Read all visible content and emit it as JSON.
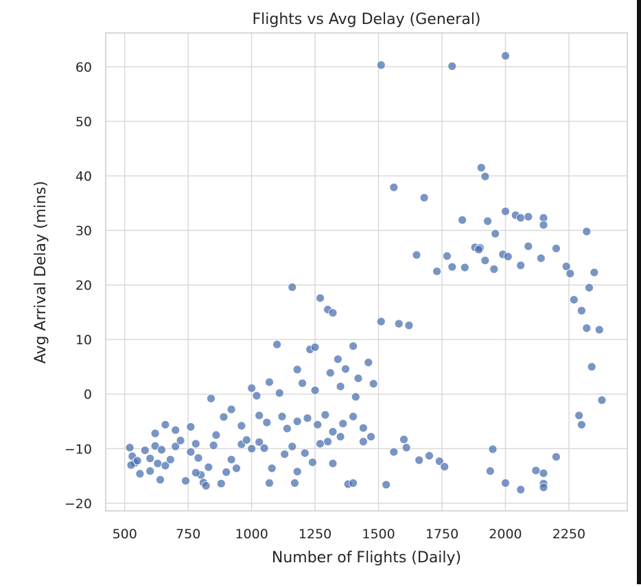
{
  "chart_data": {
    "type": "scatter",
    "title": "Flights vs Avg Delay (General)",
    "xlabel": "Number of Flights (Daily)",
    "ylabel": "Avg Arrival Delay (mins)",
    "xlim": [
      425,
      2480
    ],
    "ylim": [
      -21.4,
      66.2
    ],
    "xticks": [
      500,
      750,
      1000,
      1250,
      1500,
      1750,
      2000,
      2250
    ],
    "xtick_labels": [
      "500",
      "750",
      "1000",
      "1250",
      "1500",
      "1750",
      "2000",
      "2250"
    ],
    "yticks": [
      -20,
      -10,
      0,
      10,
      20,
      30,
      40,
      50,
      60
    ],
    "ytick_labels": [
      "−20",
      "−10",
      "0",
      "10",
      "20",
      "30",
      "40",
      "50",
      "60"
    ],
    "grid": true,
    "marker_color": "#4c72b0",
    "grid_color": "#d9d9d9",
    "spine_color": "#cccccc",
    "points": [
      [
        1510,
        60.3
      ],
      [
        1790,
        60.1
      ],
      [
        2000,
        62.0
      ],
      [
        1905,
        41.5
      ],
      [
        1920,
        39.9
      ],
      [
        1560,
        37.9
      ],
      [
        1680,
        36.0
      ],
      [
        2000,
        33.5
      ],
      [
        2040,
        32.8
      ],
      [
        2060,
        32.3
      ],
      [
        2090,
        32.5
      ],
      [
        2150,
        32.3
      ],
      [
        2150,
        31.0
      ],
      [
        1830,
        31.9
      ],
      [
        1930,
        31.7
      ],
      [
        2320,
        29.8
      ],
      [
        1960,
        29.4
      ],
      [
        1880,
        26.9
      ],
      [
        1900,
        26.8
      ],
      [
        1895,
        26.5
      ],
      [
        2090,
        27.1
      ],
      [
        2200,
        26.7
      ],
      [
        1650,
        25.5
      ],
      [
        1770,
        25.3
      ],
      [
        1920,
        24.5
      ],
      [
        1990,
        25.6
      ],
      [
        2010,
        25.2
      ],
      [
        2140,
        24.9
      ],
      [
        1730,
        22.5
      ],
      [
        1790,
        23.3
      ],
      [
        1840,
        23.2
      ],
      [
        1955,
        22.9
      ],
      [
        2060,
        23.6
      ],
      [
        2240,
        23.4
      ],
      [
        2255,
        22.1
      ],
      [
        1160,
        19.6
      ],
      [
        1270,
        17.6
      ],
      [
        1300,
        15.5
      ],
      [
        1320,
        14.9
      ],
      [
        1510,
        13.3
      ],
      [
        1580,
        12.9
      ],
      [
        1620,
        12.6
      ],
      [
        1100,
        9.1
      ],
      [
        1230,
        8.2
      ],
      [
        1250,
        8.6
      ],
      [
        1400,
        8.8
      ],
      [
        1340,
        6.4
      ],
      [
        1180,
        4.5
      ],
      [
        1310,
        3.9
      ],
      [
        1370,
        4.6
      ],
      [
        1420,
        2.9
      ],
      [
        1460,
        5.8
      ],
      [
        1480,
        1.9
      ],
      [
        1200,
        2.0
      ],
      [
        1070,
        2.2
      ],
      [
        1000,
        1.1
      ],
      [
        1020,
        -0.3
      ],
      [
        1110,
        0.2
      ],
      [
        1250,
        0.7
      ],
      [
        1350,
        1.4
      ],
      [
        1410,
        -0.5
      ],
      [
        840,
        -0.8
      ],
      [
        920,
        -2.8
      ],
      [
        890,
        -4.2
      ],
      [
        960,
        -5.8
      ],
      [
        1030,
        -3.9
      ],
      [
        1060,
        -5.2
      ],
      [
        1120,
        -4.1
      ],
      [
        1140,
        -6.3
      ],
      [
        1180,
        -5.0
      ],
      [
        1220,
        -4.4
      ],
      [
        1260,
        -5.6
      ],
      [
        1290,
        -3.8
      ],
      [
        1320,
        -6.9
      ],
      [
        1360,
        -5.4
      ],
      [
        1400,
        -4.1
      ],
      [
        1440,
        -6.2
      ],
      [
        1470,
        -7.8
      ],
      [
        520,
        -9.8
      ],
      [
        530,
        -11.4
      ],
      [
        540,
        -12.6
      ],
      [
        525,
        -13.0
      ],
      [
        550,
        -12.2
      ],
      [
        580,
        -10.3
      ],
      [
        600,
        -11.8
      ],
      [
        620,
        -9.5
      ],
      [
        630,
        -12.7
      ],
      [
        645,
        -10.2
      ],
      [
        660,
        -13.1
      ],
      [
        600,
        -14.1
      ],
      [
        560,
        -14.6
      ],
      [
        640,
        -15.7
      ],
      [
        680,
        -12.0
      ],
      [
        700,
        -9.6
      ],
      [
        620,
        -7.2
      ],
      [
        660,
        -5.6
      ],
      [
        700,
        -6.6
      ],
      [
        720,
        -8.5
      ],
      [
        760,
        -6.0
      ],
      [
        760,
        -10.6
      ],
      [
        780,
        -9.1
      ],
      [
        790,
        -11.7
      ],
      [
        800,
        -14.8
      ],
      [
        810,
        -16.2
      ],
      [
        820,
        -16.8
      ],
      [
        780,
        -14.4
      ],
      [
        830,
        -13.4
      ],
      [
        850,
        -9.4
      ],
      [
        860,
        -7.5
      ],
      [
        880,
        -16.4
      ],
      [
        900,
        -14.3
      ],
      [
        920,
        -12.0
      ],
      [
        940,
        -13.6
      ],
      [
        740,
        -15.9
      ],
      [
        960,
        -9.2
      ],
      [
        980,
        -8.4
      ],
      [
        1000,
        -10.0
      ],
      [
        1030,
        -8.8
      ],
      [
        1050,
        -9.9
      ],
      [
        1080,
        -13.6
      ],
      [
        1070,
        -16.3
      ],
      [
        1130,
        -11.0
      ],
      [
        1160,
        -9.6
      ],
      [
        1170,
        -16.3
      ],
      [
        1180,
        -14.2
      ],
      [
        1210,
        -10.8
      ],
      [
        1240,
        -12.5
      ],
      [
        1270,
        -9.1
      ],
      [
        1300,
        -8.7
      ],
      [
        1320,
        -12.7
      ],
      [
        1350,
        -7.8
      ],
      [
        1380,
        -16.5
      ],
      [
        1400,
        -16.3
      ],
      [
        1440,
        -8.7
      ],
      [
        1530,
        -16.6
      ],
      [
        1560,
        -10.6
      ],
      [
        1600,
        -8.3
      ],
      [
        1610,
        -9.8
      ],
      [
        1660,
        -12.1
      ],
      [
        1700,
        -11.3
      ],
      [
        1740,
        -12.3
      ],
      [
        1760,
        -13.3
      ],
      [
        1940,
        -14.1
      ],
      [
        1950,
        -10.1
      ],
      [
        2000,
        -16.3
      ],
      [
        2060,
        -17.5
      ],
      [
        2120,
        -14.0
      ],
      [
        2150,
        -14.5
      ],
      [
        2150,
        -16.4
      ],
      [
        2150,
        -17.1
      ],
      [
        2200,
        -11.5
      ],
      [
        2300,
        -5.6
      ],
      [
        2290,
        -3.9
      ],
      [
        2380,
        -1.1
      ],
      [
        2370,
        11.8
      ],
      [
        2350,
        22.3
      ],
      [
        2330,
        19.5
      ],
      [
        2300,
        15.3
      ],
      [
        2340,
        5.0
      ],
      [
        2320,
        12.1
      ],
      [
        2270,
        17.3
      ]
    ]
  }
}
